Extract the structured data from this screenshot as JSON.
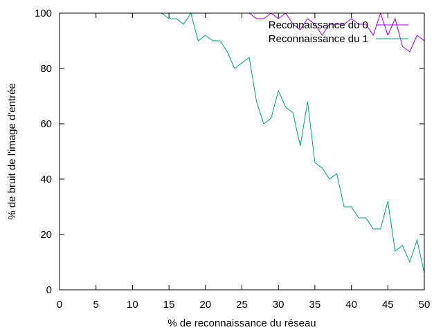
{
  "chart_data": {
    "type": "line",
    "xlabel": "% de reconnaissance du réseau",
    "ylabel": "% de bruit de l'image d'entrée",
    "xlim": [
      0,
      50
    ],
    "ylim": [
      0,
      100
    ],
    "xticks": [
      0,
      5,
      10,
      15,
      20,
      25,
      30,
      35,
      40,
      45,
      50
    ],
    "yticks": [
      0,
      20,
      40,
      60,
      80,
      100
    ],
    "grid": false,
    "legend_position": "top-right",
    "x": [
      0,
      1,
      2,
      3,
      4,
      5,
      6,
      7,
      8,
      9,
      10,
      11,
      12,
      13,
      14,
      15,
      16,
      17,
      18,
      19,
      20,
      21,
      22,
      23,
      24,
      25,
      26,
      27,
      28,
      29,
      30,
      31,
      32,
      33,
      34,
      35,
      36,
      37,
      38,
      39,
      40,
      41,
      42,
      43,
      44,
      45,
      46,
      47,
      48,
      49,
      50
    ],
    "series": [
      {
        "name": "Reconnaissance du 0",
        "color": "#9400d3",
        "values": [
          100,
          100,
          100,
          100,
          100,
          100,
          100,
          100,
          100,
          100,
          100,
          100,
          100,
          100,
          100,
          100,
          100,
          100,
          100,
          100,
          100,
          100,
          100,
          100,
          100,
          100,
          100,
          98,
          98,
          100,
          98,
          100,
          96,
          94,
          98,
          96,
          92,
          96,
          96,
          96,
          98,
          96,
          96,
          92,
          100,
          92,
          98,
          88,
          86,
          92,
          90
        ]
      },
      {
        "name": "Reconnaissance du 1",
        "color": "#009e73",
        "values": [
          100,
          100,
          100,
          100,
          100,
          100,
          100,
          100,
          100,
          100,
          100,
          100,
          100,
          100,
          100,
          98,
          98,
          96,
          100,
          90,
          92,
          90,
          90,
          86,
          80,
          82,
          84,
          68,
          60,
          62,
          72,
          66,
          64,
          52,
          68,
          46,
          44,
          40,
          42,
          30,
          30,
          26,
          26,
          22,
          22,
          32,
          14,
          16,
          10,
          18,
          6
        ]
      }
    ]
  }
}
